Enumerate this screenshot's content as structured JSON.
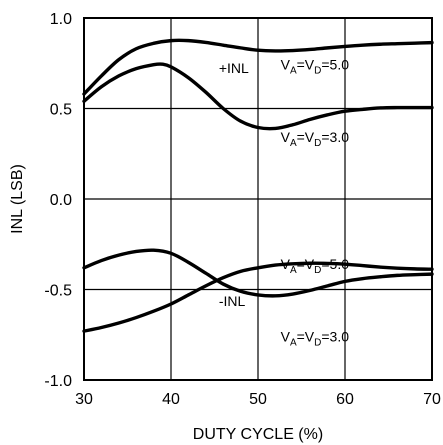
{
  "chart_data": {
    "type": "line",
    "title": "",
    "xlabel": "DUTY CYCLE (%)",
    "ylabel": "INL (LSB)",
    "xlim": [
      30,
      70
    ],
    "ylim": [
      -1.0,
      1.0
    ],
    "x_ticks": [
      30,
      40,
      50,
      60,
      70
    ],
    "x_tick_labels": [
      "30",
      "40",
      "50",
      "60",
      "70"
    ],
    "y_ticks": [
      1.0,
      0.5,
      0.0,
      -0.5,
      -1.0
    ],
    "y_tick_labels": [
      "1.0",
      "0.5",
      "0.0",
      "-0.5",
      "-1.0"
    ],
    "grid": true,
    "series": [
      {
        "x": [
          30,
          32,
          34,
          36,
          38,
          40,
          42,
          44,
          46,
          48,
          50,
          52,
          54,
          56,
          58,
          60,
          62,
          64,
          66,
          68,
          70
        ],
        "values": [
          0.58,
          0.68,
          0.77,
          0.83,
          0.86,
          0.875,
          0.875,
          0.865,
          0.85,
          0.835,
          0.822,
          0.818,
          0.82,
          0.826,
          0.835,
          0.843,
          0.85,
          0.855,
          0.858,
          0.861,
          0.864
        ]
      },
      {
        "x": [
          30,
          32,
          34,
          36,
          38,
          39,
          40,
          42,
          44,
          46,
          48,
          50,
          52,
          54,
          56,
          58,
          60,
          62,
          64,
          66,
          68,
          70
        ],
        "values": [
          0.54,
          0.62,
          0.68,
          0.72,
          0.742,
          0.745,
          0.73,
          0.67,
          0.59,
          0.5,
          0.43,
          0.395,
          0.39,
          0.41,
          0.44,
          0.465,
          0.485,
          0.495,
          0.503,
          0.505,
          0.505,
          0.505
        ]
      },
      {
        "x": [
          30,
          32,
          34,
          36,
          38,
          40,
          42,
          44,
          46,
          48,
          50,
          52,
          54,
          56,
          58,
          60,
          62,
          64,
          66,
          68,
          70
        ],
        "values": [
          -0.38,
          -0.34,
          -0.31,
          -0.29,
          -0.283,
          -0.3,
          -0.35,
          -0.41,
          -0.47,
          -0.51,
          -0.53,
          -0.535,
          -0.525,
          -0.505,
          -0.48,
          -0.455,
          -0.44,
          -0.43,
          -0.422,
          -0.418,
          -0.415
        ]
      },
      {
        "x": [
          30,
          32,
          34,
          36,
          38,
          40,
          42,
          44,
          46,
          48,
          50,
          52,
          54,
          56,
          58,
          60,
          62,
          64,
          66,
          68,
          70
        ],
        "values": [
          -0.73,
          -0.71,
          -0.685,
          -0.655,
          -0.62,
          -0.58,
          -0.53,
          -0.48,
          -0.435,
          -0.4,
          -0.38,
          -0.365,
          -0.358,
          -0.355,
          -0.356,
          -0.36,
          -0.368,
          -0.376,
          -0.382,
          -0.386,
          -0.388
        ]
      }
    ],
    "annotations": [
      {
        "text": "+INL",
        "x": 45.5,
        "y": 0.695
      },
      {
        "text": "-INL",
        "x": 45.5,
        "y": -0.59
      }
    ],
    "voltage_labels": [
      {
        "va": "A",
        "vd": "D",
        "value": "=5.0",
        "x": 52.6,
        "y": 0.716
      },
      {
        "va": "A",
        "vd": "D",
        "value": "=3.0",
        "x": 52.6,
        "y": 0.316
      },
      {
        "va": "A",
        "vd": "D",
        "value": "=5.0",
        "x": 52.6,
        "y": -0.386
      },
      {
        "va": "A",
        "vd": "D",
        "value": "=3.0",
        "x": 52.6,
        "y": -0.786
      }
    ],
    "voltage_prefix": "V"
  }
}
